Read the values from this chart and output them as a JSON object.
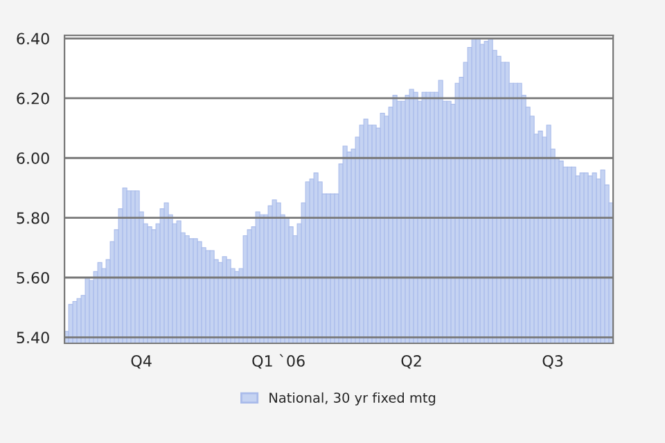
{
  "chart_data": {
    "type": "bar",
    "categories": [
      null,
      null,
      null,
      null,
      null,
      null,
      null,
      null,
      null,
      null,
      null,
      null,
      null,
      null,
      null,
      null,
      null,
      null,
      "Q4",
      null,
      null,
      null,
      null,
      null,
      null,
      null,
      null,
      null,
      null,
      null,
      null,
      null,
      null,
      null,
      null,
      null,
      null,
      null,
      null,
      null,
      null,
      null,
      null,
      null,
      null,
      null,
      null,
      null,
      null,
      null,
      null,
      "Q1 `06",
      null,
      null,
      null,
      null,
      null,
      null,
      null,
      null,
      null,
      null,
      null,
      null,
      null,
      null,
      null,
      null,
      null,
      null,
      null,
      null,
      null,
      null,
      null,
      null,
      null,
      null,
      null,
      null,
      null,
      null,
      null,
      "Q2",
      null,
      null,
      null,
      null,
      null,
      null,
      null,
      null,
      null,
      null,
      null,
      null,
      null,
      null,
      null,
      null,
      null,
      null,
      null,
      null,
      null,
      null,
      null,
      null,
      null,
      null,
      null,
      null,
      null,
      null,
      null,
      null,
      null,
      "Q3",
      null,
      null,
      null,
      null,
      null,
      null,
      null,
      null,
      null,
      null,
      null,
      null,
      null,
      null
    ],
    "series": [
      {
        "name": "National, 30 yr fixed mtg",
        "color": "#c5d3f2",
        "values": [
          5.42,
          5.51,
          5.52,
          5.53,
          5.54,
          5.6,
          5.59,
          5.62,
          5.65,
          5.63,
          5.66,
          5.72,
          5.76,
          5.83,
          5.9,
          5.89,
          5.89,
          5.89,
          5.82,
          5.78,
          5.77,
          5.76,
          5.78,
          5.83,
          5.85,
          5.81,
          5.78,
          5.79,
          5.75,
          5.74,
          5.73,
          5.73,
          5.72,
          5.7,
          5.69,
          5.69,
          5.66,
          5.65,
          5.67,
          5.66,
          5.63,
          5.62,
          5.63,
          5.74,
          5.76,
          5.77,
          5.82,
          5.81,
          5.81,
          5.84,
          5.86,
          5.85,
          5.81,
          5.8,
          5.77,
          5.74,
          5.78,
          5.85,
          5.92,
          5.93,
          5.95,
          5.92,
          5.88,
          5.88,
          5.88,
          5.88,
          5.98,
          6.04,
          6.02,
          6.03,
          6.07,
          6.11,
          6.13,
          6.11,
          6.11,
          6.1,
          6.15,
          6.14,
          6.17,
          6.21,
          6.19,
          6.19,
          6.21,
          6.23,
          6.22,
          6.19,
          6.22,
          6.22,
          6.22,
          6.22,
          6.26,
          6.19,
          6.19,
          6.18,
          6.25,
          6.27,
          6.32,
          6.37,
          6.4,
          6.4,
          6.38,
          6.39,
          6.4,
          6.36,
          6.34,
          6.32,
          6.32,
          6.25,
          6.25,
          6.25,
          6.21,
          6.17,
          6.14,
          6.08,
          6.09,
          6.07,
          6.11,
          6.03,
          6.0,
          5.99,
          5.97,
          5.97,
          5.97,
          5.94,
          5.95,
          5.95,
          5.94,
          5.95,
          5.93,
          5.96,
          5.91,
          5.85
        ]
      }
    ],
    "ylim": [
      5.38,
      6.41
    ],
    "yticks": [
      {
        "value": 5.4,
        "label": "5.40"
      },
      {
        "value": 5.6,
        "label": "5.60"
      },
      {
        "value": 5.8,
        "label": "5.80"
      },
      {
        "value": 6.0,
        "label": "6.00"
      },
      {
        "value": 6.2,
        "label": "6.20"
      },
      {
        "value": 6.4,
        "label": "6.40"
      }
    ],
    "grid": "y",
    "legend": "bottom"
  }
}
